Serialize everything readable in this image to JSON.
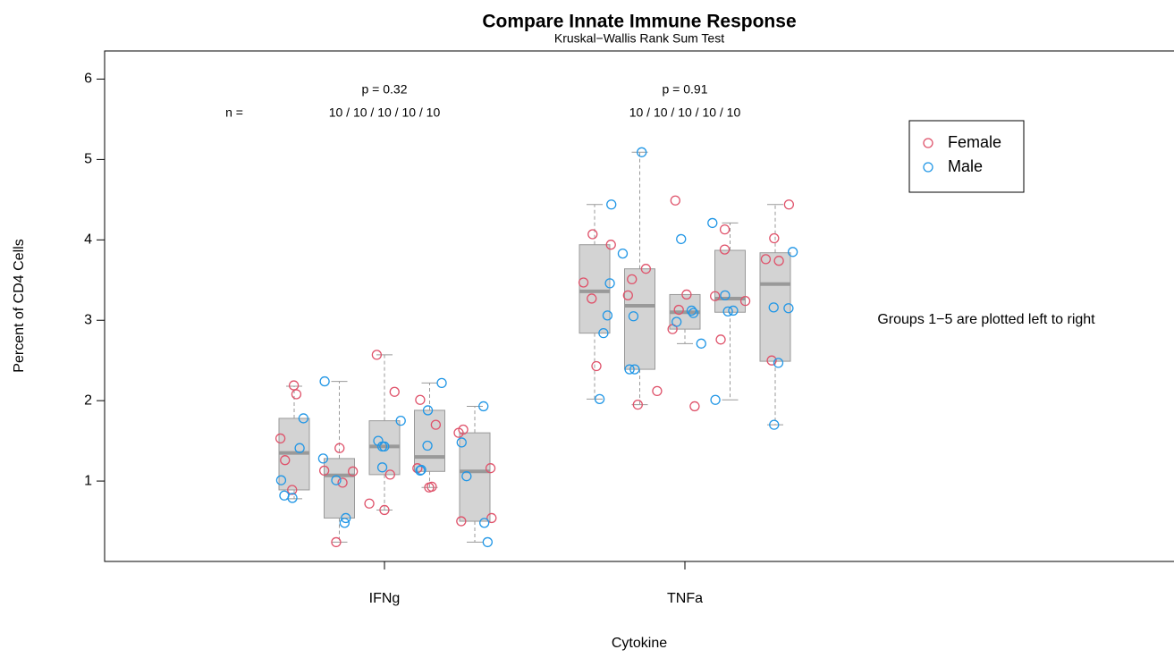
{
  "chart_data": {
    "type": "box",
    "title": "Compare Innate Immune Response",
    "subtitle": "Kruskal−Wallis Rank Sum Test",
    "xlabel": "Cytokine",
    "ylabel": "Percent of CD4 Cells",
    "categories": [
      "IFNg",
      "TNFa"
    ],
    "ylim": [
      0,
      6.35
    ],
    "yticks": [
      1,
      2,
      3,
      4,
      5,
      6
    ],
    "box_color": "#d3d3d3",
    "boxes": [
      [
        {
          "min": 0.78,
          "q1": 0.89,
          "median": 1.35,
          "q3": 1.78,
          "max": 2.18
        },
        {
          "min": 0.24,
          "q1": 0.54,
          "median": 1.07,
          "q3": 1.28,
          "max": 2.24
        },
        {
          "min": 0.64,
          "q1": 1.08,
          "median": 1.43,
          "q3": 1.75,
          "max": 2.57
        },
        {
          "min": 0.92,
          "q1": 1.12,
          "median": 1.3,
          "q3": 1.88,
          "max": 2.22
        },
        {
          "min": 0.24,
          "q1": 0.5,
          "median": 1.12,
          "q3": 1.6,
          "max": 1.93
        }
      ],
      [
        {
          "min": 2.02,
          "q1": 2.84,
          "median": 3.36,
          "q3": 3.94,
          "max": 4.44
        },
        {
          "min": 1.95,
          "q1": 2.39,
          "median": 3.18,
          "q3": 3.64,
          "max": 5.09
        },
        {
          "min": 2.71,
          "q1": 2.89,
          "median": 3.1,
          "q3": 3.32,
          "max": 3.32
        },
        {
          "min": 2.01,
          "q1": 3.1,
          "median": 3.27,
          "q3": 3.87,
          "max": 4.21
        },
        {
          "min": 1.7,
          "q1": 2.49,
          "median": 3.45,
          "q3": 3.84,
          "max": 4.44
        }
      ]
    ],
    "points": [
      {
        "name": "Female",
        "color": "#DF536B",
        "values": [
          [
            [
              2.19,
              2.08,
              1.53,
              1.26,
              0.89
            ],
            [
              1.41,
              1.13,
              1.12,
              0.98,
              0.24
            ],
            [
              2.57,
              2.11,
              1.08,
              0.72,
              0.64
            ],
            [
              2.01,
              1.7,
              1.16,
              0.93,
              0.92
            ],
            [
              1.64,
              1.6,
              1.16,
              0.54,
              0.5
            ]
          ],
          [
            [
              4.07,
              3.94,
              3.47,
              3.27,
              2.43
            ],
            [
              3.64,
              3.51,
              3.31,
              2.12,
              1.95
            ],
            [
              4.49,
              3.32,
              3.13,
              2.89,
              1.93
            ],
            [
              4.13,
              3.88,
              3.3,
              3.24,
              2.76
            ],
            [
              4.44,
              4.02,
              3.76,
              3.74,
              2.5
            ]
          ]
        ]
      },
      {
        "name": "Male",
        "color": "#2297E6",
        "values": [
          [
            [
              1.78,
              1.41,
              1.01,
              0.82,
              0.79
            ],
            [
              2.24,
              1.28,
              1.01,
              0.54,
              0.48
            ],
            [
              1.75,
              1.5,
              1.43,
              1.43,
              1.17
            ],
            [
              2.22,
              1.88,
              1.44,
              1.14,
              1.13
            ],
            [
              1.93,
              1.48,
              1.06,
              0.48,
              0.24
            ]
          ],
          [
            [
              4.44,
              3.46,
              3.06,
              2.84,
              2.02
            ],
            [
              5.09,
              3.83,
              3.05,
              2.39,
              2.39
            ],
            [
              4.01,
              3.12,
              3.09,
              2.98,
              2.71
            ],
            [
              4.21,
              3.31,
              3.12,
              3.11,
              2.01
            ],
            [
              3.85,
              3.16,
              3.15,
              2.47,
              1.7
            ]
          ]
        ]
      }
    ],
    "legend": "topright",
    "annotations": {
      "n_label": "n =",
      "p_values": [
        "p = 0.32",
        "p = 0.91"
      ],
      "n_values": [
        "10 / 10 / 10 / 10 / 10",
        "10 / 10 / 10 / 10 / 10"
      ],
      "note": "Groups 1−5 are plotted left to right"
    }
  }
}
